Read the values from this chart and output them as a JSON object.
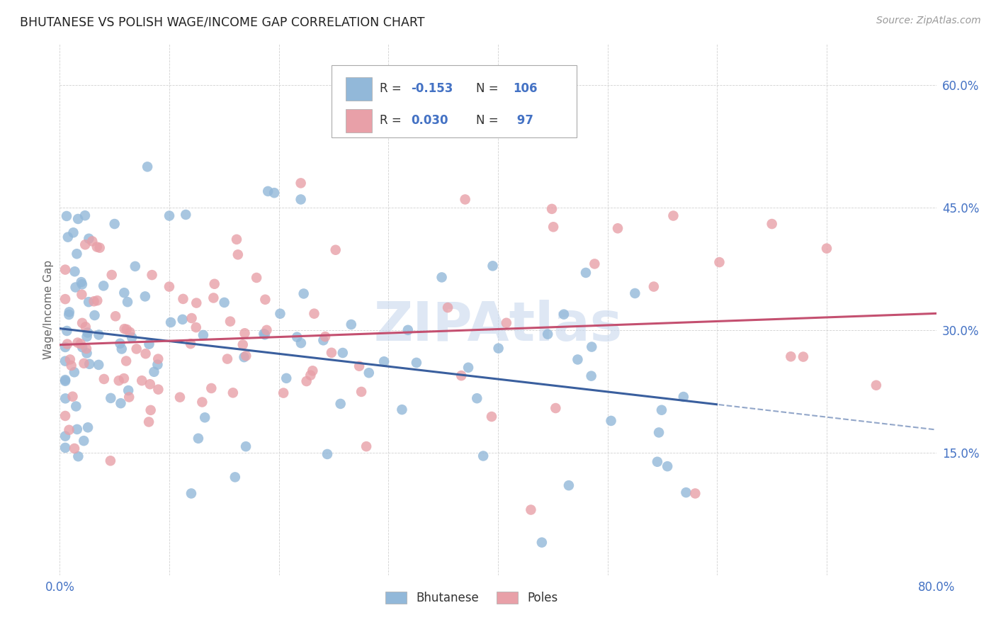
{
  "title": "BHUTANESE VS POLISH WAGE/INCOME GAP CORRELATION CHART",
  "source": "Source: ZipAtlas.com",
  "ylabel": "Wage/Income Gap",
  "xlim": [
    0.0,
    0.8
  ],
  "ylim": [
    0.0,
    0.65
  ],
  "x_ticks": [
    0.0,
    0.1,
    0.2,
    0.3,
    0.4,
    0.5,
    0.6,
    0.7,
    0.8
  ],
  "y_ticks": [
    0.15,
    0.3,
    0.45,
    0.6
  ],
  "y_tick_labels": [
    "15.0%",
    "30.0%",
    "45.0%",
    "60.0%"
  ],
  "bhutanese_R": -0.153,
  "bhutanese_N": 106,
  "poles_R": 0.03,
  "poles_N": 97,
  "blue_color": "#92b8d9",
  "pink_color": "#e8a0a8",
  "blue_line_color": "#3a5f9e",
  "pink_line_color": "#c45070",
  "watermark_color": "#c8d8ee",
  "background_color": "#ffffff",
  "grid_color": "#cccccc",
  "legend_text_color": "#333333",
  "legend_val_color": "#4472c4",
  "tick_color": "#4472c4",
  "ylabel_color": "#666666",
  "blue_line_solid_end": 0.6,
  "blue_line_intercept": 0.302,
  "blue_line_slope": -0.155,
  "pink_line_intercept": 0.282,
  "pink_line_slope": 0.048
}
